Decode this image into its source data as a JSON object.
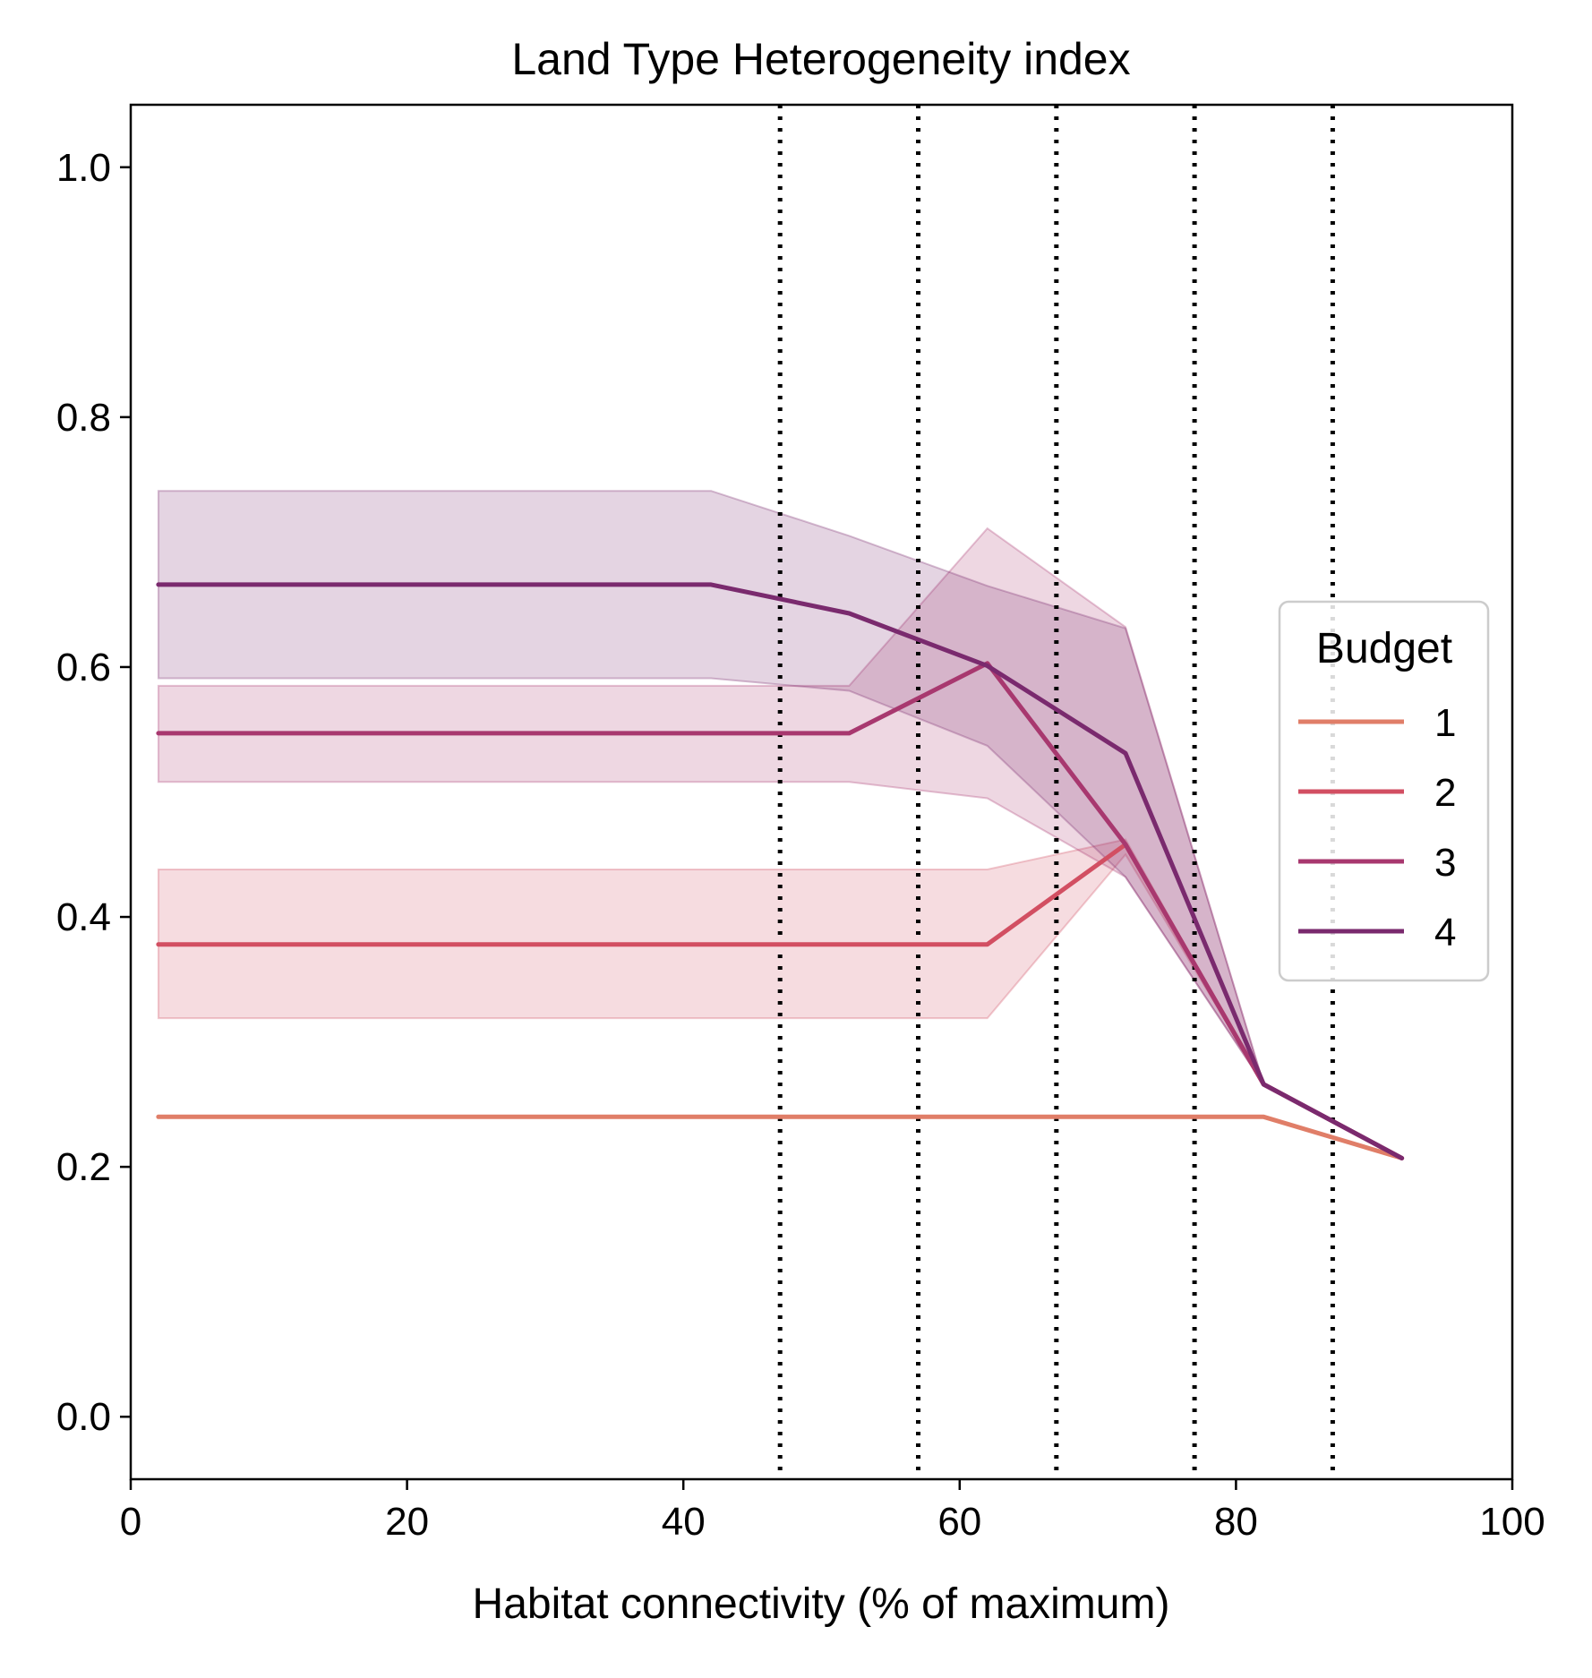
{
  "chart_data": {
    "type": "line",
    "title": "Land Type Heterogeneity index",
    "xlabel": "Habitat connectivity (% of maximum)",
    "ylabel": "",
    "xlim": [
      0,
      100
    ],
    "ylim": [
      -0.05,
      1.05
    ],
    "xticks": [
      0,
      20,
      40,
      60,
      80,
      100
    ],
    "xtick_labels": [
      "0",
      "20",
      "40",
      "60",
      "80",
      "100"
    ],
    "yticks": [
      0.0,
      0.2,
      0.4,
      0.6,
      0.8,
      1.0
    ],
    "ytick_labels": [
      "0.0",
      "0.2",
      "0.4",
      "0.6",
      "0.8",
      "1.0"
    ],
    "grid": false,
    "vlines": [
      47,
      57,
      67,
      77,
      87
    ],
    "legend": {
      "title": "Budget",
      "position": "right"
    },
    "series": [
      {
        "name": "1",
        "color": "#e07e68",
        "x": [
          2,
          42,
          52,
          62,
          72,
          82,
          92
        ],
        "y": [
          0.24,
          0.24,
          0.24,
          0.24,
          0.24,
          0.24,
          0.207
        ]
      },
      {
        "name": "2",
        "color": "#d24f62",
        "x": [
          2,
          42,
          52,
          62,
          72,
          82,
          92
        ],
        "y": [
          0.378,
          0.378,
          0.378,
          0.378,
          0.458,
          0.266,
          0.207
        ],
        "lower": [
          0.319,
          0.319,
          0.319,
          0.319,
          0.45,
          0.266,
          0.207
        ],
        "upper": [
          0.438,
          0.438,
          0.438,
          0.438,
          0.462,
          0.266,
          0.207
        ]
      },
      {
        "name": "3",
        "color": "#a8386f",
        "x": [
          2,
          42,
          52,
          62,
          72,
          82,
          92
        ],
        "y": [
          0.547,
          0.547,
          0.547,
          0.603,
          0.458,
          0.266,
          0.207
        ],
        "lower": [
          0.508,
          0.508,
          0.508,
          0.495,
          0.432,
          0.266,
          0.207
        ],
        "upper": [
          0.585,
          0.585,
          0.585,
          0.711,
          0.632,
          0.266,
          0.207
        ]
      },
      {
        "name": "4",
        "color": "#7a2a6e",
        "x": [
          2,
          42,
          52,
          62,
          72,
          82,
          92
        ],
        "y": [
          0.666,
          0.666,
          0.643,
          0.601,
          0.531,
          0.266,
          0.207
        ],
        "lower": [
          0.591,
          0.591,
          0.581,
          0.537,
          0.432,
          0.266,
          0.207
        ],
        "upper": [
          0.741,
          0.741,
          0.705,
          0.665,
          0.631,
          0.266,
          0.207
        ]
      }
    ]
  }
}
